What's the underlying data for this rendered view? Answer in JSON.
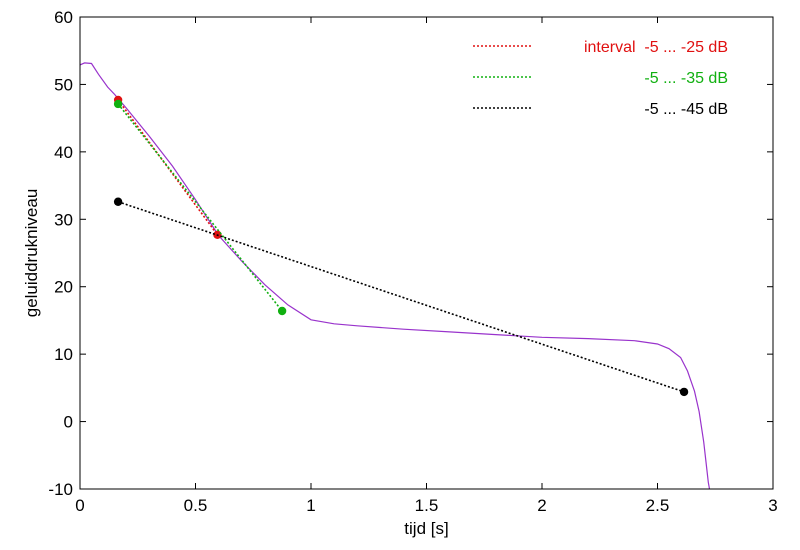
{
  "chart_data": {
    "type": "line",
    "title": "",
    "xlabel": "tijd  [s]",
    "ylabel": "geluiddrukniveau",
    "xlim": [
      0,
      3
    ],
    "ylim": [
      -10,
      60
    ],
    "xticks": [
      "0",
      "0.5",
      "1",
      "1.5",
      "2",
      "2.5",
      "3"
    ],
    "yticks": [
      "-10",
      "0",
      "10",
      "20",
      "30",
      "40",
      "50",
      "60"
    ],
    "grid": false,
    "legend_position": "top-right",
    "decay_curve": {
      "color": "#9933cc",
      "x": [
        0,
        0.02,
        0.05,
        0.08,
        0.12,
        0.15,
        0.2,
        0.3,
        0.4,
        0.5,
        0.6,
        0.7,
        0.8,
        0.9,
        1.0,
        1.1,
        1.2,
        1.4,
        1.6,
        1.8,
        2.0,
        2.2,
        2.4,
        2.5,
        2.55,
        2.6,
        2.63,
        2.66,
        2.68,
        2.7,
        2.71,
        2.72,
        2.725
      ],
      "y": [
        52.9,
        53.2,
        53.1,
        51.5,
        49.6,
        48.5,
        46.5,
        42.3,
        37.9,
        32.9,
        27.6,
        23.8,
        20.3,
        17.3,
        15.1,
        14.5,
        14.2,
        13.7,
        13.3,
        12.9,
        12.5,
        12.3,
        12.0,
        11.5,
        10.8,
        9.5,
        7.5,
        4.5,
        1.5,
        -3.0,
        -6.0,
        -9.0,
        -10.0
      ]
    },
    "series": [
      {
        "name": "interval  -5 ... -25 dB",
        "legend_label": "interval  -5 ... -25 dB",
        "color": "#e01010",
        "x": [
          0.165,
          0.595
        ],
        "y": [
          47.7,
          27.7
        ]
      },
      {
        "name": "-5 ... -35 dB",
        "legend_label": "-5 ... -35 dB",
        "color": "#10b010",
        "x": [
          0.165,
          0.875
        ],
        "y": [
          47.1,
          16.4
        ]
      },
      {
        "name": "-5 ... -45 dB",
        "legend_label": "-5 ... -45 dB",
        "color": "#000000",
        "x": [
          0.165,
          2.615
        ],
        "y": [
          32.6,
          4.4
        ]
      }
    ]
  }
}
